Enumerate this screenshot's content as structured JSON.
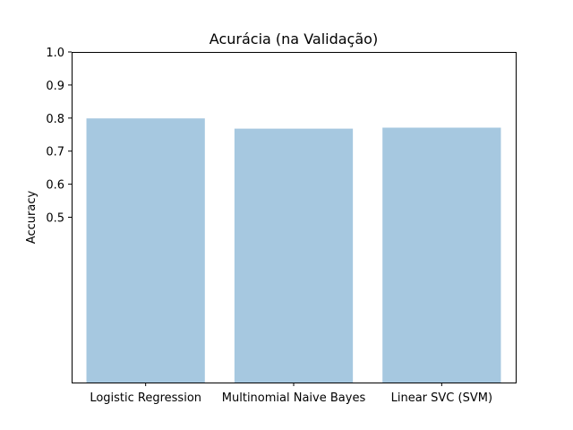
{
  "chart_data": {
    "type": "bar",
    "title": "Acurácia (na Validação)",
    "xlabel": "",
    "ylabel": "Accuracy",
    "categories": [
      "Logistic Regression",
      "Multinomial Naive Bayes",
      "Linear SVC (SVM)"
    ],
    "values": [
      0.799,
      0.768,
      0.771
    ],
    "ylim": [
      0.0,
      1.0
    ],
    "yticks": [
      0.5,
      0.6,
      0.7,
      0.8,
      0.9,
      1.0
    ],
    "ytick_labels": [
      "0.5",
      "0.6",
      "0.7",
      "0.8",
      "0.9",
      "1.0"
    ],
    "bar_color": "#a6c8e0",
    "grid": false,
    "legend": "none"
  }
}
